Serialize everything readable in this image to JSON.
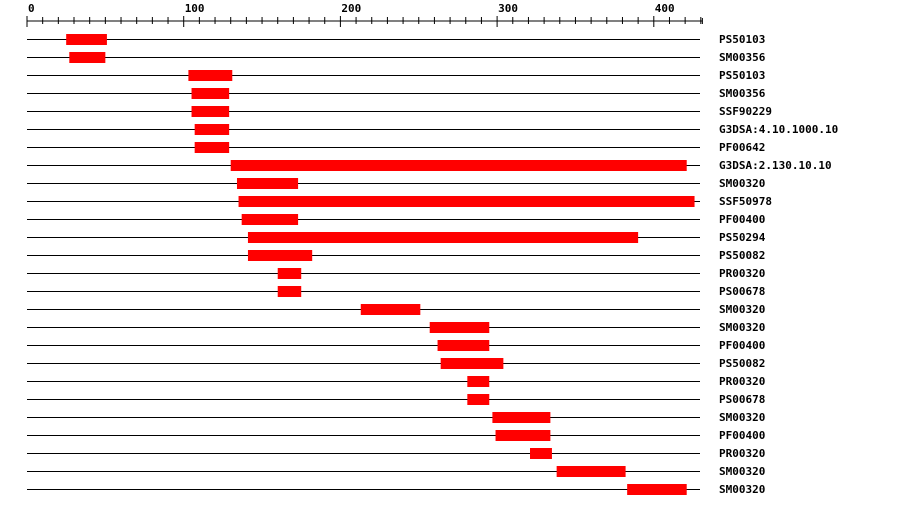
{
  "chart_data": {
    "type": "range-bar",
    "title": "",
    "xlabel": "",
    "ylabel": "",
    "xlim": [
      0,
      431
    ],
    "x_ticks": [
      0,
      100,
      200,
      300,
      400
    ],
    "minor_tick_step": 10,
    "bar_color": "#ff0000",
    "rows": [
      {
        "label": "PS50103",
        "start": 25,
        "end": 51
      },
      {
        "label": "SM00356",
        "start": 27,
        "end": 50
      },
      {
        "label": "PS50103",
        "start": 103,
        "end": 131
      },
      {
        "label": "SM00356",
        "start": 105,
        "end": 129
      },
      {
        "label": "SSF90229",
        "start": 105,
        "end": 129
      },
      {
        "label": "G3DSA:4.10.1000.10",
        "start": 107,
        "end": 129
      },
      {
        "label": "PF00642",
        "start": 107,
        "end": 129
      },
      {
        "label": "G3DSA:2.130.10.10",
        "start": 130,
        "end": 421
      },
      {
        "label": "SM00320",
        "start": 134,
        "end": 173
      },
      {
        "label": "SSF50978",
        "start": 135,
        "end": 426
      },
      {
        "label": "PF00400",
        "start": 137,
        "end": 173
      },
      {
        "label": "PS50294",
        "start": 141,
        "end": 390
      },
      {
        "label": "PS50082",
        "start": 141,
        "end": 182
      },
      {
        "label": "PR00320",
        "start": 160,
        "end": 175
      },
      {
        "label": "PS00678",
        "start": 160,
        "end": 175
      },
      {
        "label": "SM00320",
        "start": 213,
        "end": 251
      },
      {
        "label": "SM00320",
        "start": 257,
        "end": 295
      },
      {
        "label": "PF00400",
        "start": 262,
        "end": 295
      },
      {
        "label": "PS50082",
        "start": 264,
        "end": 304
      },
      {
        "label": "PR00320",
        "start": 281,
        "end": 295
      },
      {
        "label": "PS00678",
        "start": 281,
        "end": 295
      },
      {
        "label": "SM00320",
        "start": 297,
        "end": 334
      },
      {
        "label": "PF00400",
        "start": 299,
        "end": 334
      },
      {
        "label": "PR00320",
        "start": 321,
        "end": 335
      },
      {
        "label": "SM00320",
        "start": 338,
        "end": 382
      },
      {
        "label": "SM00320",
        "start": 383,
        "end": 421
      }
    ]
  }
}
